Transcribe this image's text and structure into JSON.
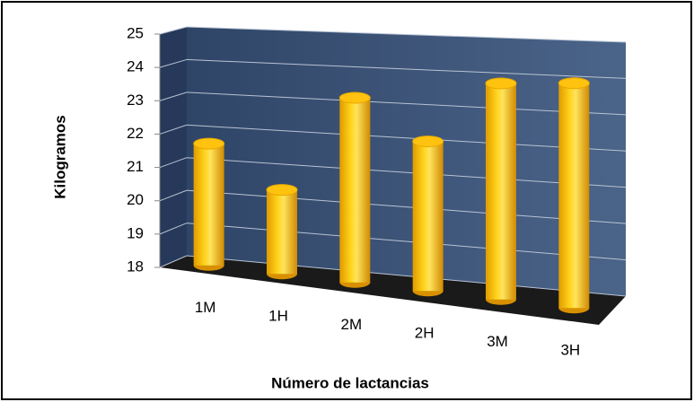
{
  "chart_data": {
    "type": "bar",
    "x_label": "Número de lactancias",
    "y_label": "Kilogramos",
    "categories": [
      "1M",
      "1H",
      "2M",
      "2H",
      "3M",
      "3H"
    ],
    "values": [
      21.6,
      20.4,
      23.1,
      22.0,
      23.6,
      23.65
    ],
    "color": "#ffc000",
    "ylim": [
      18,
      25
    ],
    "yticks": [
      18,
      19,
      20,
      21,
      22,
      23,
      24,
      25
    ],
    "grid": true
  }
}
